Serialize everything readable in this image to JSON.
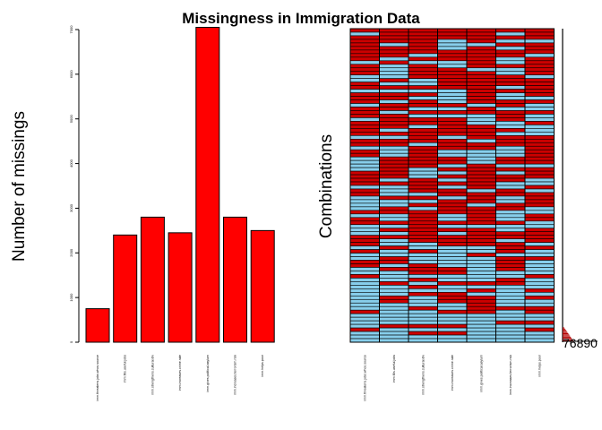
{
  "chart_data": [
    {
      "type": "bar",
      "title": "Missingness in Immigration Data",
      "ylabel": "Number of missings",
      "xlabel": "",
      "ylim": [
        0,
        7000
      ],
      "yticks": [
        0,
        1000,
        2000,
        3000,
        4000,
        5000,
        6000,
        7000
      ],
      "categories": [
        "imm.threatens.jobs.whos.source",
        "imm.fills.useful.jobs",
        "imm.strengthens.cultural.div",
        "imm.increases.crime.rate",
        "imm.gives.political.asylum",
        "imm.increases.terrorism.risk",
        "imm.helps.poor"
      ],
      "values": [
        750,
        2400,
        2800,
        2450,
        7050,
        2800,
        2500
      ],
      "colors": {
        "bar": "#ff0000",
        "border": "#000000"
      }
    },
    {
      "type": "heatmap",
      "ylabel": "Combinations",
      "categories": [
        "imm.threatens.jobs.whos.source",
        "imm.fills.useful.jobs",
        "imm.strengthens.cultural.div",
        "imm.increases.crime.rate",
        "imm.gives.political.asylum",
        "imm.increases.terrorism.risk",
        "imm.helps.poor"
      ],
      "max_count_label": "76890",
      "colors": {
        "missing": "#cc0000",
        "observed": "#87ceeb",
        "border": "#000000"
      }
    }
  ]
}
